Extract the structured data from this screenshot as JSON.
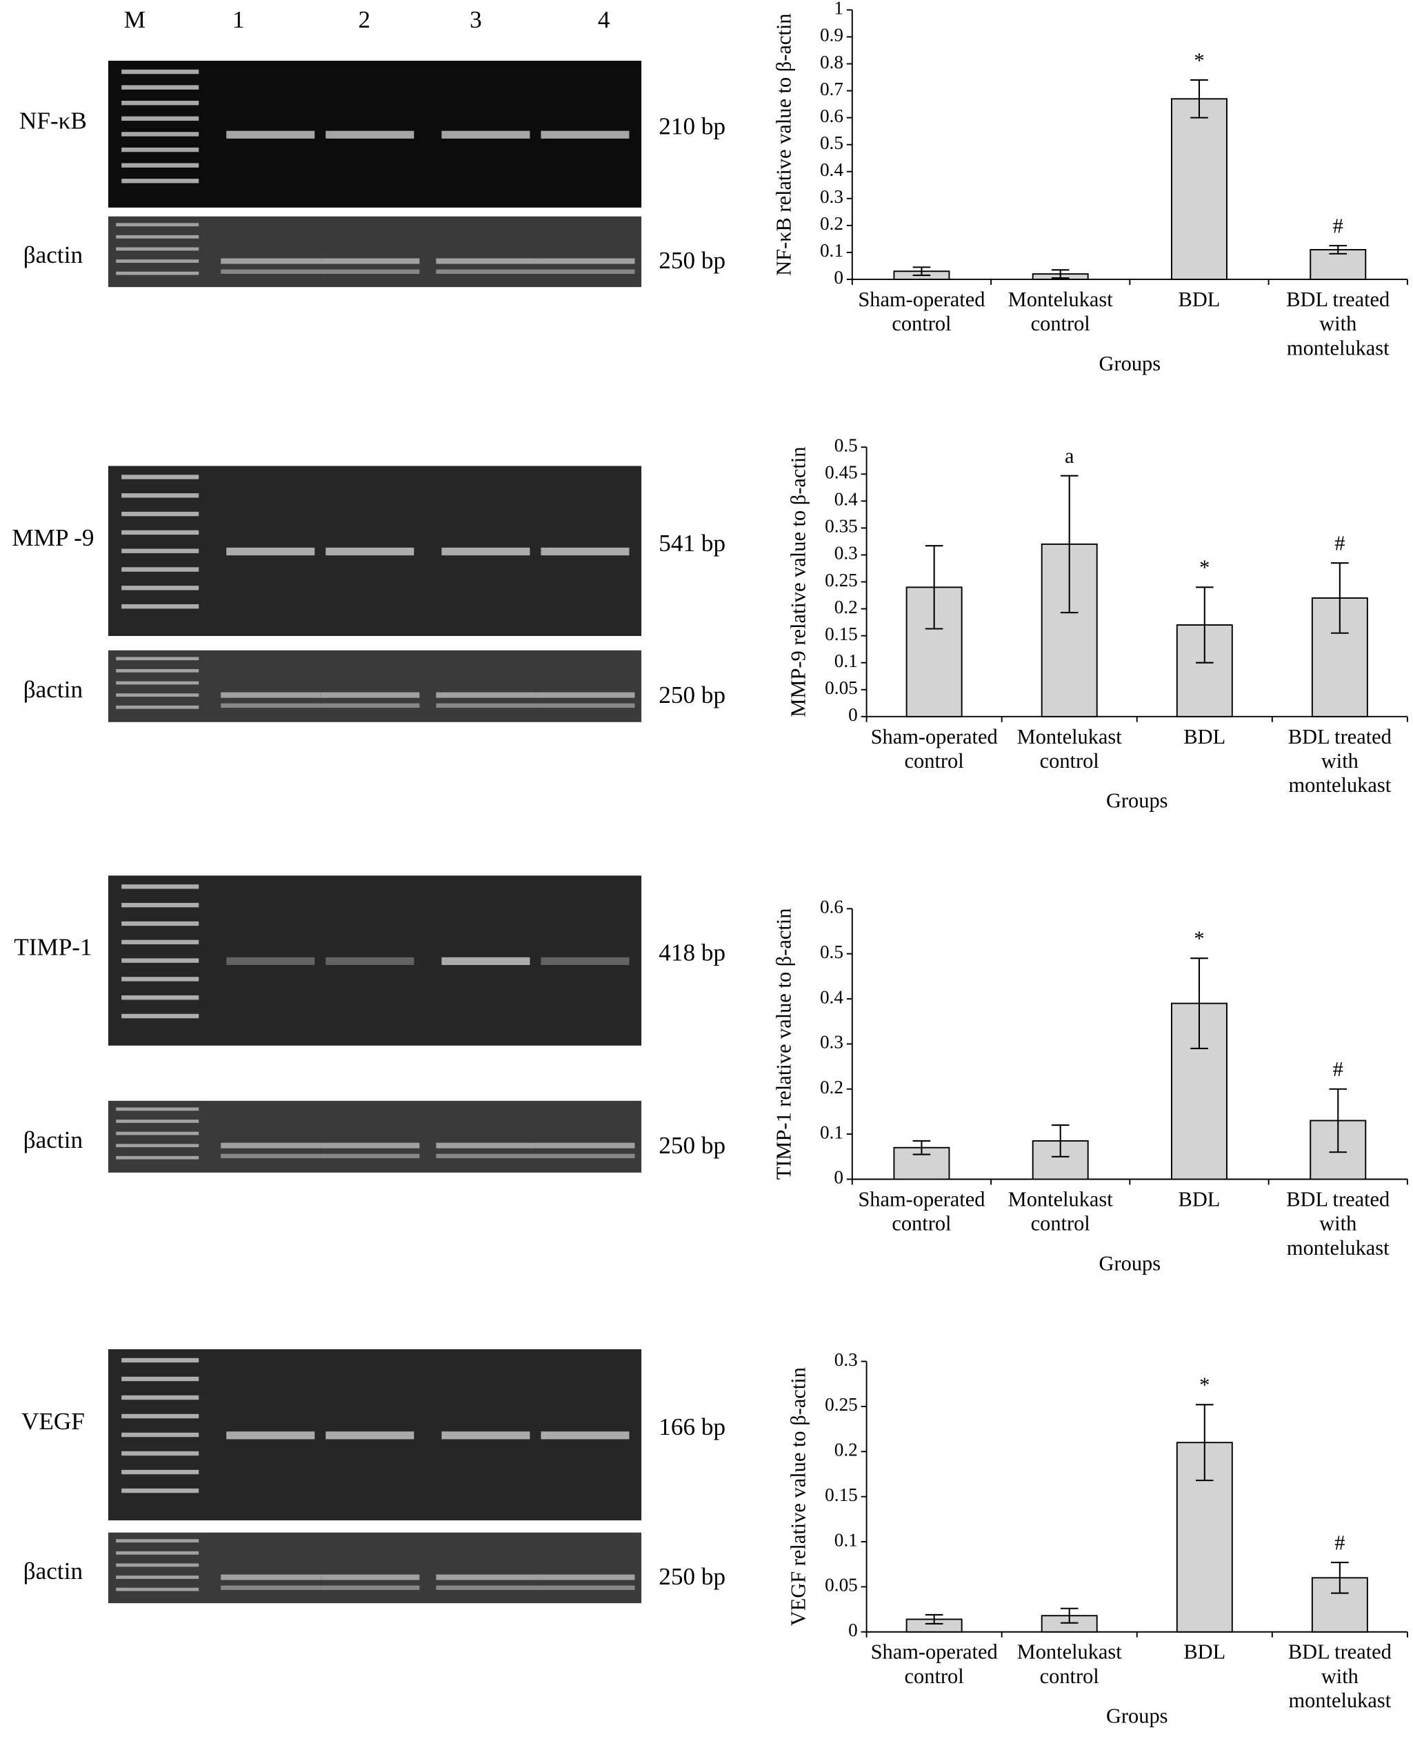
{
  "gels": {
    "lanes": [
      "M",
      "1",
      "2",
      "3",
      "4"
    ],
    "panels": [
      {
        "name": "NF-κB",
        "bp": "210 bp",
        "actin": "βactin",
        "actin_bp": "250 bp"
      },
      {
        "name": "MMP -9",
        "bp": "541 bp",
        "actin": "βactin",
        "actin_bp": "250 bp"
      },
      {
        "name": "TIMP-1",
        "bp": "418 bp",
        "actin": "βactin",
        "actin_bp": "250 bp"
      },
      {
        "name": "VEGF",
        "bp": "166 bp",
        "actin": "βactin",
        "actin_bp": "250 bp"
      }
    ]
  },
  "chart_data": [
    {
      "type": "bar",
      "ylabel": "NF-κB relative value to β-actin",
      "xlabel": "Groups",
      "categories": [
        [
          "Sham-operated",
          "control"
        ],
        [
          "Montelukast",
          "control"
        ],
        [
          "BDL"
        ],
        [
          "BDL treated",
          "with",
          "montelukast"
        ]
      ],
      "values": [
        0.03,
        0.02,
        0.67,
        0.11
      ],
      "errors": [
        0.015,
        0.015,
        0.07,
        0.015
      ],
      "annotations": [
        null,
        null,
        "*",
        "#"
      ],
      "color": "#d3d3d3",
      "ylim": [
        0,
        1
      ],
      "yticks": [
        0,
        0.1,
        0.2,
        0.3,
        0.4,
        0.5,
        0.6,
        0.7,
        0.8,
        0.9,
        1
      ]
    },
    {
      "type": "bar",
      "ylabel": "MMP-9 relative value to β-actin",
      "xlabel": "Groups",
      "categories": [
        [
          "Sham-operated",
          "control"
        ],
        [
          "Montelukast",
          "control"
        ],
        [
          "BDL"
        ],
        [
          "BDL treated",
          "with",
          "montelukast"
        ]
      ],
      "values": [
        0.24,
        0.32,
        0.17,
        0.22
      ],
      "errors": [
        0.077,
        0.127,
        0.07,
        0.065
      ],
      "annotations": [
        null,
        "a",
        "*",
        "#"
      ],
      "color": "#d3d3d3",
      "ylim": [
        0,
        0.5
      ],
      "yticks": [
        0,
        0.05,
        0.1,
        0.15,
        0.2,
        0.25,
        0.3,
        0.35,
        0.4,
        0.45,
        0.5
      ]
    },
    {
      "type": "bar",
      "ylabel": "TIMP-1 relative value to β-actin",
      "xlabel": "Groups",
      "categories": [
        [
          "Sham-operated",
          "control"
        ],
        [
          "Montelukast",
          "control"
        ],
        [
          "BDL"
        ],
        [
          "BDL treated",
          "with",
          "montelukast"
        ]
      ],
      "values": [
        0.07,
        0.085,
        0.39,
        0.13
      ],
      "errors": [
        0.015,
        0.035,
        0.1,
        0.07
      ],
      "annotations": [
        null,
        null,
        "*",
        "#"
      ],
      "color": "#d3d3d3",
      "ylim": [
        0,
        0.6
      ],
      "yticks": [
        0,
        0.1,
        0.2,
        0.3,
        0.4,
        0.5,
        0.6
      ]
    },
    {
      "type": "bar",
      "ylabel": "VEGF relative value to β-actin",
      "xlabel": "Groups",
      "categories": [
        [
          "Sham-operated",
          "control"
        ],
        [
          "Montelukast",
          "control"
        ],
        [
          "BDL"
        ],
        [
          "BDL treated",
          "with",
          "montelukast"
        ]
      ],
      "values": [
        0.014,
        0.018,
        0.21,
        0.06
      ],
      "errors": [
        0.005,
        0.008,
        0.042,
        0.017
      ],
      "annotations": [
        null,
        null,
        "*",
        "#"
      ],
      "color": "#d3d3d3",
      "ylim": [
        0,
        0.3
      ],
      "yticks": [
        0,
        0.05,
        0.1,
        0.15,
        0.2,
        0.25,
        0.3
      ]
    }
  ]
}
